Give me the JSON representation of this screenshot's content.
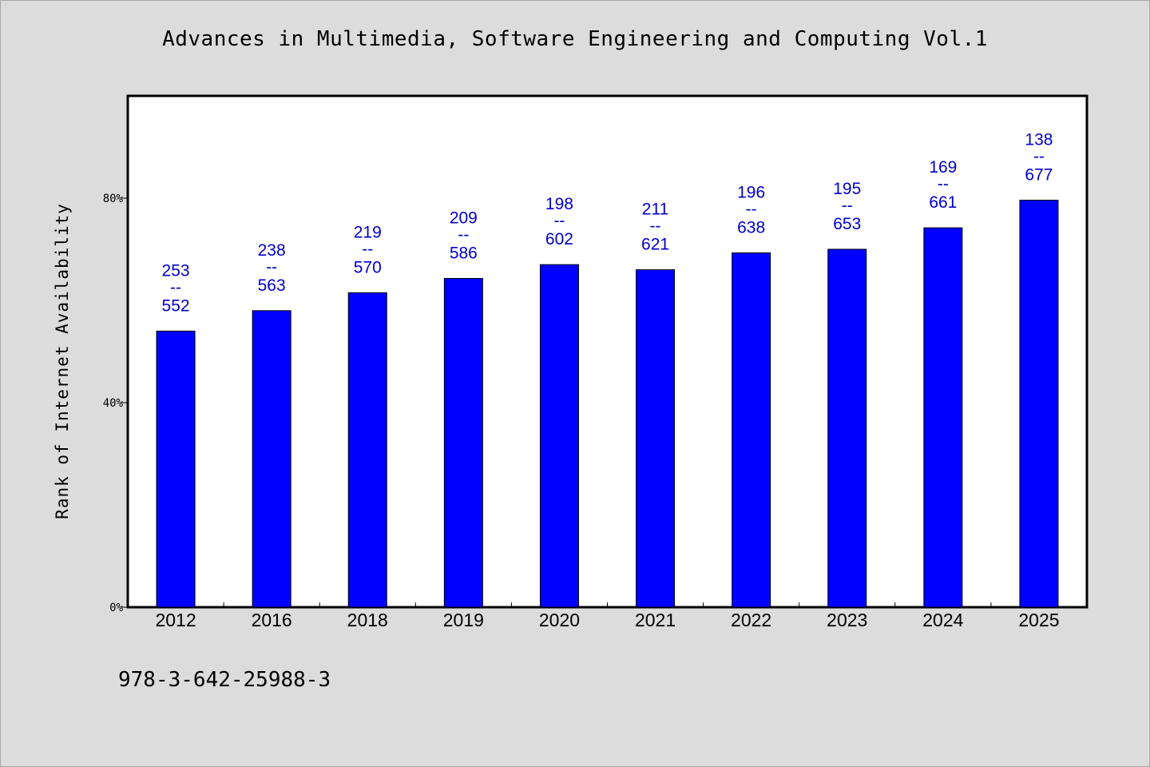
{
  "chart_data": {
    "type": "bar",
    "title": "Advances in Multimedia, Software Engineering and Computing Vol.1",
    "ylabel": "Rank of Internet Availability",
    "xlabel": "",
    "footer": "978-3-642-25988-3",
    "categories": [
      "2012",
      "2016",
      "2018",
      "2019",
      "2020",
      "2021",
      "2022",
      "2023",
      "2024",
      "2025"
    ],
    "values": [
      54,
      58,
      61.5,
      64.3,
      67,
      66,
      69.3,
      70,
      74.2,
      79.6
    ],
    "top_labels": [
      "253",
      "238",
      "219",
      "209",
      "198",
      "211",
      "196",
      "195",
      "169",
      "138"
    ],
    "separator": "--",
    "bottom_labels": [
      "552",
      "563",
      "570",
      "586",
      "602",
      "621",
      "638",
      "653",
      "661",
      "677"
    ],
    "ylim": [
      0,
      100
    ],
    "yticks": [
      0,
      40,
      80
    ],
    "ytick_labels": [
      "0%",
      "40%",
      "80%"
    ],
    "grid": false,
    "bar_color": "#0000ff",
    "label_color": "#0000cc",
    "background_color": "#dcdcdc",
    "plot_background": "#ffffff"
  }
}
